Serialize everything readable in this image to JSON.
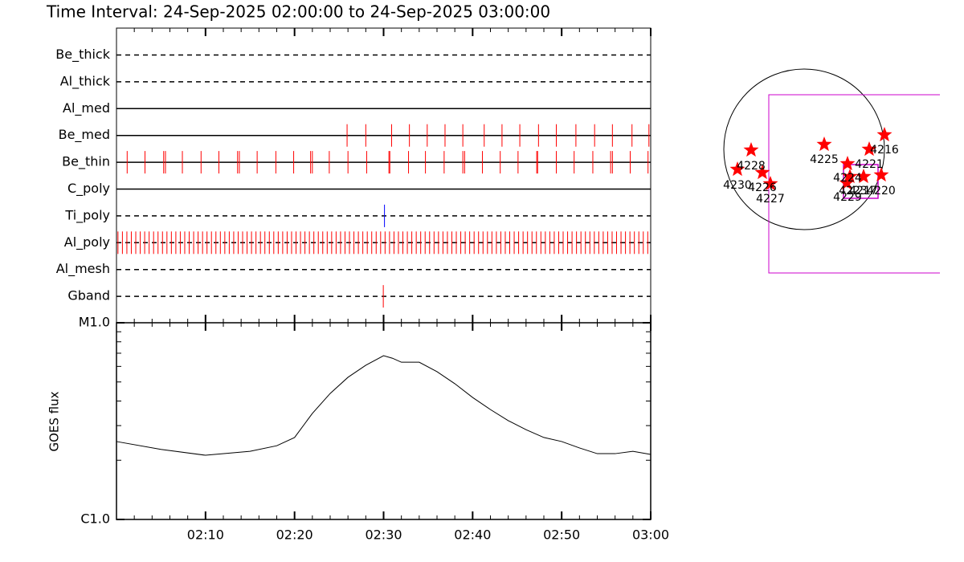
{
  "title": "Time Interval: 24-Sep-2025 02:00:00 to 24-Sep-2025 03:00:00",
  "chart_data": [
    {
      "type": "event",
      "xlim": [
        "02:00:00",
        "03:00:00"
      ],
      "rows": [
        {
          "name": "Be_thick",
          "line": "dashed",
          "color": "#ff0000",
          "times": []
        },
        {
          "name": "Al_thick",
          "line": "dashed",
          "color": "#ff0000",
          "times": []
        },
        {
          "name": "Al_med",
          "line": "solid",
          "color": "#ff0000",
          "times": []
        },
        {
          "name": "Be_med",
          "line": "solid",
          "color": "#ff0000",
          "times": [
            "02:25:54",
            "02:28:00",
            "02:30:54",
            "02:32:54",
            "02:34:54",
            "02:36:54",
            "02:38:54",
            "02:41:18",
            "02:43:18",
            "02:45:18",
            "02:47:24",
            "02:49:24",
            "02:51:36",
            "02:53:42",
            "02:55:42",
            "02:57:54",
            "02:59:48"
          ]
        },
        {
          "name": "Be_thin",
          "line": "solid",
          "color": "#ff0000",
          "times": [
            "02:01:12",
            "02:03:12",
            "02:05:18",
            "02:05:30",
            "02:07:24",
            "02:09:30",
            "02:11:30",
            "02:13:36",
            "02:13:48",
            "02:15:48",
            "02:17:54",
            "02:19:54",
            "02:21:48",
            "02:22:00",
            "02:23:54",
            "02:26:00",
            "02:28:06",
            "02:30:36",
            "02:30:42",
            "02:32:48",
            "02:34:42",
            "02:36:48",
            "02:38:54",
            "02:39:06",
            "02:41:06",
            "02:43:06",
            "02:45:06",
            "02:47:12",
            "02:47:18",
            "02:49:24",
            "02:51:24",
            "02:53:30",
            "02:55:30",
            "02:55:42",
            "02:57:42",
            "02:59:42"
          ]
        },
        {
          "name": "C_poly",
          "line": "solid",
          "color": "#ff0000",
          "times": []
        },
        {
          "name": "Ti_poly",
          "line": "dashed",
          "color": "#0000ff",
          "times": [
            "02:30:06"
          ]
        },
        {
          "name": "Al_poly",
          "line": "dashed",
          "color": "#ff0000",
          "times": [
            "02:00:10",
            "02:00:40",
            "02:01:10",
            "02:01:40",
            "02:02:10",
            "02:02:40",
            "02:03:10",
            "02:03:40",
            "02:04:10",
            "02:04:40",
            "02:05:10",
            "02:05:40",
            "02:06:10",
            "02:06:40",
            "02:07:10",
            "02:07:40",
            "02:08:10",
            "02:08:40",
            "02:09:10",
            "02:09:40",
            "02:10:10",
            "02:10:40",
            "02:11:10",
            "02:11:40",
            "02:12:10",
            "02:12:40",
            "02:13:10",
            "02:13:40",
            "02:14:10",
            "02:14:40",
            "02:15:10",
            "02:15:40",
            "02:16:10",
            "02:16:40",
            "02:17:10",
            "02:17:40",
            "02:18:10",
            "02:18:40",
            "02:19:10",
            "02:19:40",
            "02:20:10",
            "02:20:40",
            "02:21:10",
            "02:21:40",
            "02:22:10",
            "02:22:40",
            "02:23:10",
            "02:23:40",
            "02:24:10",
            "02:24:40",
            "02:25:10",
            "02:25:40",
            "02:26:10",
            "02:26:40",
            "02:27:10",
            "02:27:40",
            "02:28:10",
            "02:28:40",
            "02:29:10",
            "02:29:40",
            "02:30:10",
            "02:30:40",
            "02:31:10",
            "02:31:40",
            "02:32:10",
            "02:32:40",
            "02:33:10",
            "02:33:40",
            "02:34:10",
            "02:34:40",
            "02:35:10",
            "02:35:40",
            "02:36:10",
            "02:36:40",
            "02:37:10",
            "02:37:40",
            "02:38:10",
            "02:38:40",
            "02:39:10",
            "02:39:40",
            "02:40:10",
            "02:40:40",
            "02:41:10",
            "02:41:40",
            "02:42:10",
            "02:42:40",
            "02:43:10",
            "02:43:40",
            "02:44:10",
            "02:44:40",
            "02:45:10",
            "02:45:40",
            "02:46:10",
            "02:46:40",
            "02:47:10",
            "02:47:40",
            "02:48:10",
            "02:48:40",
            "02:49:10",
            "02:49:40",
            "02:50:10",
            "02:50:40",
            "02:51:10",
            "02:51:40",
            "02:52:10",
            "02:52:40",
            "02:53:10",
            "02:53:40",
            "02:54:10",
            "02:54:40",
            "02:55:10",
            "02:55:40",
            "02:56:10",
            "02:56:40",
            "02:57:10",
            "02:57:40",
            "02:58:10",
            "02:58:40",
            "02:59:10",
            "02:59:40"
          ]
        },
        {
          "name": "Al_mesh",
          "line": "dashed",
          "color": "#ff0000",
          "times": []
        },
        {
          "name": "Gband",
          "line": "dashed",
          "color": "#ff0000",
          "times": [
            "02:29:58"
          ]
        }
      ]
    },
    {
      "type": "line",
      "y_label": "GOES flux",
      "log_scale": true,
      "xlim": [
        "02:00",
        "03:00"
      ],
      "xticks": [
        "02:10",
        "02:20",
        "02:30",
        "02:40",
        "02:50",
        "03:00"
      ],
      "ylim": [
        1e-06,
        1e-05
      ],
      "yticks": [
        {
          "value": 1e-06,
          "label": "C1.0"
        },
        {
          "value": 1e-05,
          "label": "M1.0"
        }
      ],
      "series": [
        {
          "color": "#000000",
          "x": [
            "02:00",
            "02:05",
            "02:10",
            "02:15",
            "02:18",
            "02:20",
            "02:22",
            "02:24",
            "02:26",
            "02:28",
            "02:30",
            "02:31",
            "02:32",
            "02:34",
            "02:36",
            "02:38",
            "02:40",
            "02:42",
            "02:44",
            "02:46",
            "02:48",
            "02:50",
            "02:52",
            "02:54",
            "02:56",
            "02:58",
            "03:00"
          ],
          "values": [
            2.49e-06,
            2.27e-06,
            2.12e-06,
            2.22e-06,
            2.37e-06,
            2.61e-06,
            3.46e-06,
            4.37e-06,
            5.28e-06,
            6.08e-06,
            6.8e-06,
            6.6e-06,
            6.3e-06,
            6.3e-06,
            5.64e-06,
            4.9e-06,
            4.17e-06,
            3.62e-06,
            3.18e-06,
            2.86e-06,
            2.61e-06,
            2.49e-06,
            2.31e-06,
            2.16e-06,
            2.16e-06,
            2.22e-06,
            2.14e-06
          ]
        }
      ]
    }
  ],
  "map": {
    "regions": [
      "4228",
      "4230",
      "4226",
      "4227",
      "4225",
      "4216",
      "4221",
      "4224",
      "4229",
      "4217",
      "4220",
      "4223"
    ]
  }
}
